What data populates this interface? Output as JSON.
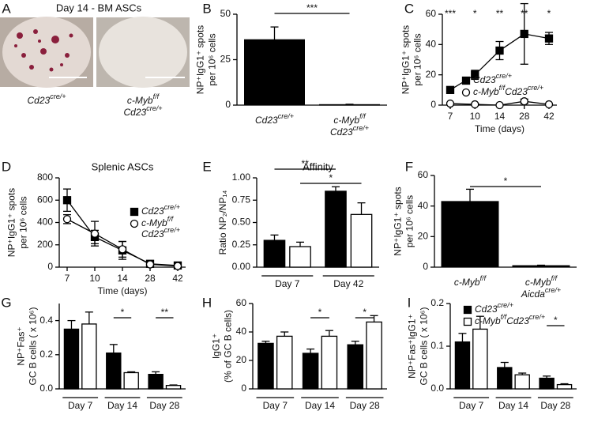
{
  "panel_labels": [
    "A",
    "B",
    "C",
    "D",
    "E",
    "F",
    "G",
    "H",
    "I"
  ],
  "panel_a": {
    "title": "Day 14 - BM ASCs",
    "labels": [
      [
        [
          {
            "text": "Cd23"
          },
          {
            "sup": "cre/+"
          }
        ]
      ],
      [
        [
          {
            "text": "c-Myb"
          },
          {
            "sup": "f/f"
          }
        ],
        [
          {
            "text": "Cd23"
          },
          {
            "sup": "cre/+"
          }
        ]
      ]
    ]
  },
  "chart_data": [
    {
      "type": "bar",
      "ylabel": [
        "NP⁺IgG1⁺ spots",
        "per 10⁶ cells"
      ],
      "categories": [
        [
          [
            {
              "text": "Cd23"
            },
            {
              "sup": "cre/+"
            }
          ]
        ],
        [
          [
            {
              "text": "c-Myb"
            },
            {
              "sup": "f/f"
            }
          ],
          [
            {
              "text": "Cd23"
            },
            {
              "sup": "cre/+"
            }
          ]
        ]
      ],
      "values": [
        36,
        0.3
      ],
      "errors": [
        7,
        0.2
      ],
      "color": "#000000",
      "ylim": [
        0,
        50
      ],
      "yticks": [
        0,
        25,
        50
      ],
      "significance": [
        "***"
      ]
    },
    {
      "type": "line",
      "xlabel": "Time (days)",
      "ylabel": [
        "NP⁺IgG1⁺ spots",
        "per 10⁶ cells"
      ],
      "categories": [
        "7",
        "10",
        "14",
        "28",
        "42"
      ],
      "series": [
        {
          "name": [
            [
              {
                "text": "Cd23"
              },
              {
                "sup": "cre/+"
              }
            ]
          ],
          "marker": "square",
          "color": "#000000",
          "values": [
            10,
            20,
            36,
            47,
            44
          ],
          "errors": [
            2,
            3,
            6,
            20,
            4
          ]
        },
        {
          "name": [
            [
              {
                "text": "c-Myb"
              },
              {
                "sup": "f/f"
              },
              {
                "text": "Cd23"
              },
              {
                "sup": "cre/+"
              }
            ]
          ],
          "marker": "circle",
          "color": "#ffffff",
          "values": [
            1,
            0.5,
            0,
            2.5,
            0.5
          ],
          "errors": [
            0.5,
            0.5,
            0.3,
            1.5,
            0.5
          ]
        }
      ],
      "ylim": [
        0,
        60
      ],
      "yticks": [
        0,
        20,
        40,
        60
      ],
      "significance": [
        "***",
        "*",
        "**",
        "**",
        "*"
      ]
    },
    {
      "type": "line",
      "title": "Splenic ASCs",
      "xlabel": "Time (days)",
      "ylabel": [
        "NP⁺IgG1⁺ spots",
        "per 10⁶ cells"
      ],
      "categories": [
        "7",
        "10",
        "14",
        "28",
        "42"
      ],
      "series": [
        {
          "name": [
            [
              {
                "text": "Cd23"
              },
              {
                "sup": "cre/+"
              }
            ]
          ],
          "marker": "square",
          "color": "#000000",
          "values": [
            600,
            270,
            150,
            30,
            15
          ],
          "errors": [
            100,
            60,
            80,
            10,
            10
          ]
        },
        {
          "name": [
            [
              {
                "text": "c-Myb"
              },
              {
                "sup": "f/f"
              }
            ],
            [
              {
                "text": "Cd23"
              },
              {
                "sup": "cre/+"
              }
            ]
          ],
          "marker": "circle",
          "color": "#ffffff",
          "values": [
            430,
            300,
            160,
            25,
            10
          ],
          "errors": [
            40,
            110,
            70,
            10,
            8
          ]
        }
      ],
      "ylim": [
        0,
        800
      ],
      "yticks": [
        0,
        200,
        400,
        600,
        800
      ]
    },
    {
      "type": "grouped_bar",
      "title": "Affinity",
      "ylabel": [
        "Ratio NP₂/NP₁₄"
      ],
      "categories": [
        "Day 7",
        "Day 42"
      ],
      "series": [
        {
          "color": "#000000",
          "values": [
            0.3,
            0.85
          ],
          "errors": [
            0.06,
            0.05
          ]
        },
        {
          "color": "#ffffff",
          "values": [
            0.23,
            0.59
          ],
          "errors": [
            0.05,
            0.13
          ]
        }
      ],
      "ylim": [
        0,
        1
      ],
      "yticks": [
        {
          "value": 0,
          "label": "0.00"
        },
        {
          "value": 0.25,
          "label": "0.25"
        },
        {
          "value": 0.5,
          "label": "0.50"
        },
        {
          "value": 0.75,
          "label": "0.75"
        },
        {
          "value": 1,
          "label": "1.00"
        }
      ],
      "significance": [
        "**",
        "*"
      ]
    },
    {
      "type": "bar",
      "ylabel": [
        "NP⁺IgG1⁺ spots",
        "per 10⁶ cells"
      ],
      "categories": [
        [
          [
            {
              "text": "c-Myb"
            },
            {
              "sup": "f/f"
            }
          ]
        ],
        [
          [
            {
              "text": "c-Myb"
            },
            {
              "sup": "f/f"
            }
          ],
          [
            {
              "text": "Aicda"
            },
            {
              "sup": "cre/+"
            }
          ]
        ]
      ],
      "values": [
        43,
        1
      ],
      "errors": [
        8,
        0.3
      ],
      "color": "#000000",
      "ylim": [
        0,
        60
      ],
      "yticks": [
        0,
        20,
        40,
        60
      ],
      "significance": [
        "*"
      ]
    },
    {
      "type": "grouped_bar",
      "ylabel": [
        "NP⁺Fas⁺",
        "GC B cells ( x 10⁶)"
      ],
      "categories": [
        "Day 7",
        "Day 14",
        "Day 28"
      ],
      "series": [
        {
          "color": "#000000",
          "values": [
            0.35,
            0.21,
            0.085
          ],
          "errors": [
            0.05,
            0.05,
            0.015
          ]
        },
        {
          "color": "#ffffff",
          "values": [
            0.38,
            0.095,
            0.02
          ],
          "errors": [
            0.07,
            0.005,
            0.003
          ]
        }
      ],
      "ylim": [
        0,
        0.5
      ],
      "yticks": [
        {
          "value": 0,
          "label": "0.0"
        },
        {
          "value": 0.2,
          "label": "0.2"
        },
        {
          "value": 0.4,
          "label": "0.4"
        }
      ],
      "significance": [
        "*",
        "**"
      ]
    },
    {
      "type": "grouped_bar",
      "ylabel": [
        "IgG1⁺",
        "(% of GC B cells)"
      ],
      "categories": [
        "Day 7",
        "Day 14",
        "Day 28"
      ],
      "series": [
        {
          "color": "#000000",
          "values": [
            32,
            25,
            31
          ],
          "errors": [
            1.5,
            3,
            2.5
          ]
        },
        {
          "color": "#ffffff",
          "values": [
            37,
            37,
            47
          ],
          "errors": [
            3,
            4,
            4.5
          ]
        }
      ],
      "ylim": [
        0,
        60
      ],
      "yticks": [
        0,
        20,
        40,
        60
      ],
      "significance": [
        "*",
        "*"
      ]
    },
    {
      "type": "grouped_bar",
      "ylabel": [
        "NP⁺Fas⁺IgG1⁺",
        "GC B cells ( x 10⁶)"
      ],
      "categories": [
        "Day 7",
        "Day 14",
        "Day 28"
      ],
      "series": [
        {
          "name": [
            [
              {
                "text": "Cd23"
              },
              {
                "sup": "cre/+"
              }
            ]
          ],
          "color": "#000000",
          "values": [
            0.11,
            0.05,
            0.025
          ],
          "errors": [
            0.02,
            0.012,
            0.005
          ]
        },
        {
          "name": [
            [
              {
                "text": "c-Myb"
              },
              {
                "sup": "f/f"
              },
              {
                "text": "Cd23"
              },
              {
                "sup": "cre/+"
              }
            ]
          ],
          "color": "#ffffff",
          "values": [
            0.14,
            0.033,
            0.01
          ],
          "errors": [
            0.03,
            0.004,
            0.002
          ]
        }
      ],
      "ylim": [
        0,
        0.2
      ],
      "yticks": [
        {
          "value": 0,
          "label": "0.0"
        },
        {
          "value": 0.1,
          "label": "0.1"
        },
        {
          "value": 0.2,
          "label": "0.2"
        }
      ],
      "significance": [
        "*"
      ]
    }
  ]
}
